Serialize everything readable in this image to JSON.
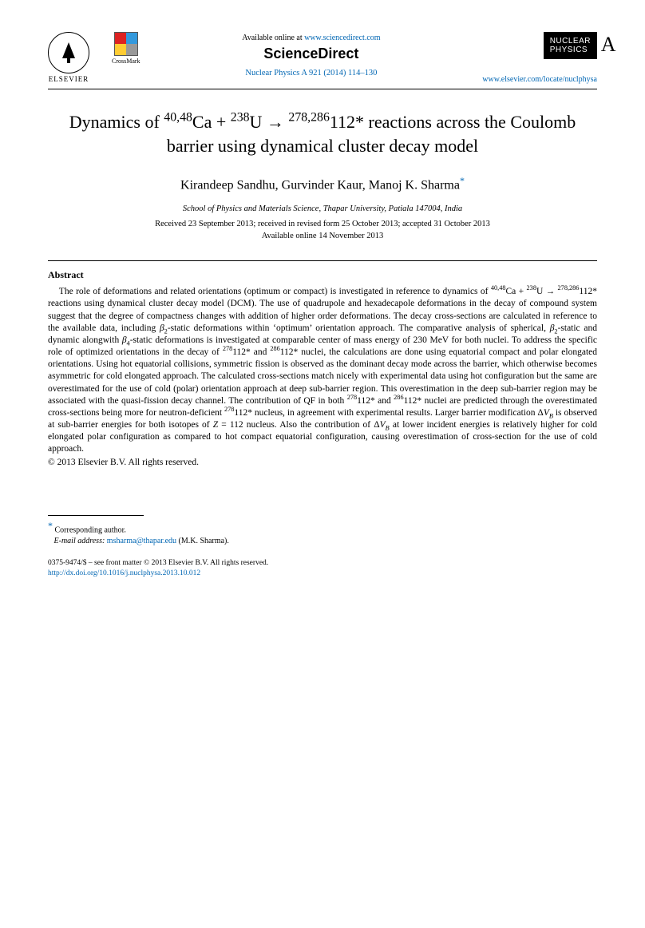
{
  "header": {
    "elsevier_label": "ELSEVIER",
    "crossmark_label": "CrossMark",
    "available_prefix": "Available online at ",
    "sd_url": "www.sciencedirect.com",
    "sciencedirect": "ScienceDirect",
    "journal_ref": "Nuclear Physics A 921 (2014) 114–130",
    "np_line1": "NUCLEAR",
    "np_line2": "PHYSICS",
    "np_letter": "A",
    "locate": "www.elsevier.com/locate/nuclphysa"
  },
  "title_html": "Dynamics of <sup>40,48</sup>Ca + <sup>238</sup>U → <sup>278,286</sup>112* reactions across the Coulomb barrier using dynamical cluster decay model",
  "authors_html": "Kirandeep Sandhu, Gurvinder Kaur, Manoj K. Sharma<span class=\"sup-star\">*</span>",
  "affiliation": "School of Physics and Materials Science, Thapar University, Patiala 147004, India",
  "dates": {
    "line1": "Received 23 September 2013; received in revised form 25 October 2013; accepted 31 October 2013",
    "line2": "Available online 14 November 2013"
  },
  "abstract_heading": "Abstract",
  "abstract_html": "The role of deformations and related orientations (optimum or compact) is investigated in reference to dynamics of <sup>40,48</sup>Ca + <sup>238</sup>U → <sup>278,286</sup>112* reactions using dynamical cluster decay model (DCM). The use of quadrupole and hexadecapole deformations in the decay of compound system suggest that the degree of compactness changes with addition of higher order deformations. The decay cross-sections are calculated in reference to the available data, including <i>β</i><sub>2</sub>-static deformations within ‘optimum’ orientation approach. The comparative analysis of spherical, <i>β</i><sub>2</sub>-static and dynamic alongwith <i>β</i><sub>4</sub>-static deformations is investigated at comparable center of mass energy of 230 MeV for both nuclei. To address the specific role of optimized orientations in the decay of <sup>278</sup>112* and <sup>286</sup>112* nuclei, the calculations are done using equatorial compact and polar elongated orientations. Using hot equatorial collisions, symmetric fission is observed as the dominant decay mode across the barrier, which otherwise becomes asymmetric for cold elongated approach. The calculated cross-sections match nicely with experimental data using hot configuration but the same are overestimated for the use of cold (polar) orientation approach at deep sub-barrier region. This overestimation in the deep sub-barrier region may be associated with the quasi-fission decay channel. The contribution of QF in both <sup>278</sup>112* and <sup>286</sup>112* nuclei are predicted through the overestimated cross-sections being more for neutron-deficient <sup>278</sup>112* nucleus, in agreement with experimental results. Larger barrier modification Δ<i>V<sub>B</sub></i> is observed at sub-barrier energies for both isotopes of <i>Z</i> = 112 nucleus. Also the contribution of Δ<i>V<sub>B</sub></i> at lower incident energies is relatively higher for cold elongated polar configuration as compared to hot compact equatorial configuration, causing overestimation of cross-section for the use of cold approach.",
  "copyright": "© 2013 Elsevier B.V. All rights reserved.",
  "footnote": {
    "corresponding": "Corresponding author.",
    "email_label": "E-mail address:",
    "email": "msharma@thapar.edu",
    "email_name": "(M.K. Sharma)."
  },
  "bottom": {
    "issn_line": "0375-9474/$ – see front matter © 2013 Elsevier B.V. All rights reserved.",
    "doi": "http://dx.doi.org/10.1016/j.nuclphysa.2013.10.012"
  }
}
